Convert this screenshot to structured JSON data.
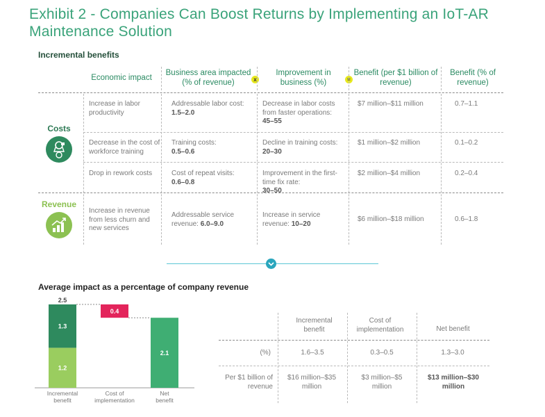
{
  "title": "Exhibit 2 - Companies Can Boost Returns by Implementing an IoT-AR Maintenance Solution",
  "section1": "Incremental benefits",
  "table": {
    "headers": {
      "economic_impact": "Economic impact",
      "business_area": "Business area impacted (% of revenue)",
      "improvement": "Improvement in business (%)",
      "benefit": "Benefit (per $1 billion of revenue)",
      "benefit_pct": "Benefit (% of revenue)"
    },
    "op_times": "x",
    "op_equals": "=",
    "groups": {
      "costs": "Costs",
      "revenue": "Revenue"
    },
    "rows": [
      {
        "impact": "Increase in labor productivity",
        "area": "Addressable labor cost:",
        "area_val": "1.5–2.0",
        "improve": "Decrease in labor costs from faster operations:",
        "improve_val": "45–55",
        "benefit": "$7 million–$11 million",
        "pct": "0.7–1.1"
      },
      {
        "impact": "Decrease in the cost of workforce training",
        "area": "Training costs:",
        "area_val": "0.5–0.6",
        "improve": "Decline in training costs:",
        "improve_val": "20–30",
        "benefit": "$1 million–$2 million",
        "pct": "0.1–0.2"
      },
      {
        "impact": "Drop in rework costs",
        "area": "Cost of repeat visits:",
        "area_val": "0.6–0.8",
        "improve": "Improvement in the first-time fix rate:",
        "improve_val": "30–50",
        "benefit": "$2 million–$4 million",
        "pct": "0.2–0.4"
      },
      {
        "impact": "Increase in revenue from less churn and new services",
        "area": "Addressable service revenue:",
        "area_val": "6.0–9.0",
        "improve": "Increase in service revenue:",
        "improve_val": "10–20",
        "benefit": "$6 million–$18 million",
        "pct": "0.6–1.8"
      }
    ]
  },
  "section2": "Average impact as a percentage of company revenue",
  "colors": {
    "dark_green": "#2e8a5e",
    "light_green": "#9acd5f",
    "mid_green": "#3fae73",
    "red": "#e3245b",
    "accent": "#3aa37a"
  },
  "chart_data": {
    "type": "bar",
    "subtype": "waterfall",
    "categories": [
      "Incremental benefit",
      "Cost of implementation",
      "Net benefit"
    ],
    "segments": [
      {
        "category": "Incremental benefit",
        "base": 0,
        "value": 1.2,
        "label": "1.2",
        "color": "#9acd5f"
      },
      {
        "category": "Incremental benefit",
        "base": 1.2,
        "value": 1.3,
        "label": "1.3",
        "color": "#2e8a5e"
      },
      {
        "category": "Cost of implementation",
        "base": 2.1,
        "value": 0.4,
        "label": "0.4",
        "color": "#e3245b"
      },
      {
        "category": "Net benefit",
        "base": 0,
        "value": 2.1,
        "label": "2.1",
        "color": "#3fae73"
      }
    ],
    "total_label": "2.5",
    "ylim": [
      0,
      2.5
    ]
  },
  "summary": {
    "col_headers": [
      "Incremental benefit",
      "Cost of implementation",
      "Net benefit"
    ],
    "rows": [
      {
        "label": "(%)",
        "values": [
          "1.6–3.5",
          "0.3–0.5",
          "1.3–3.0"
        ]
      },
      {
        "label": "Per $1 billion of revenue",
        "values": [
          "$16 million–$35 million",
          "$3 million–$5 million",
          "$13 million–$30 million"
        ]
      }
    ]
  }
}
